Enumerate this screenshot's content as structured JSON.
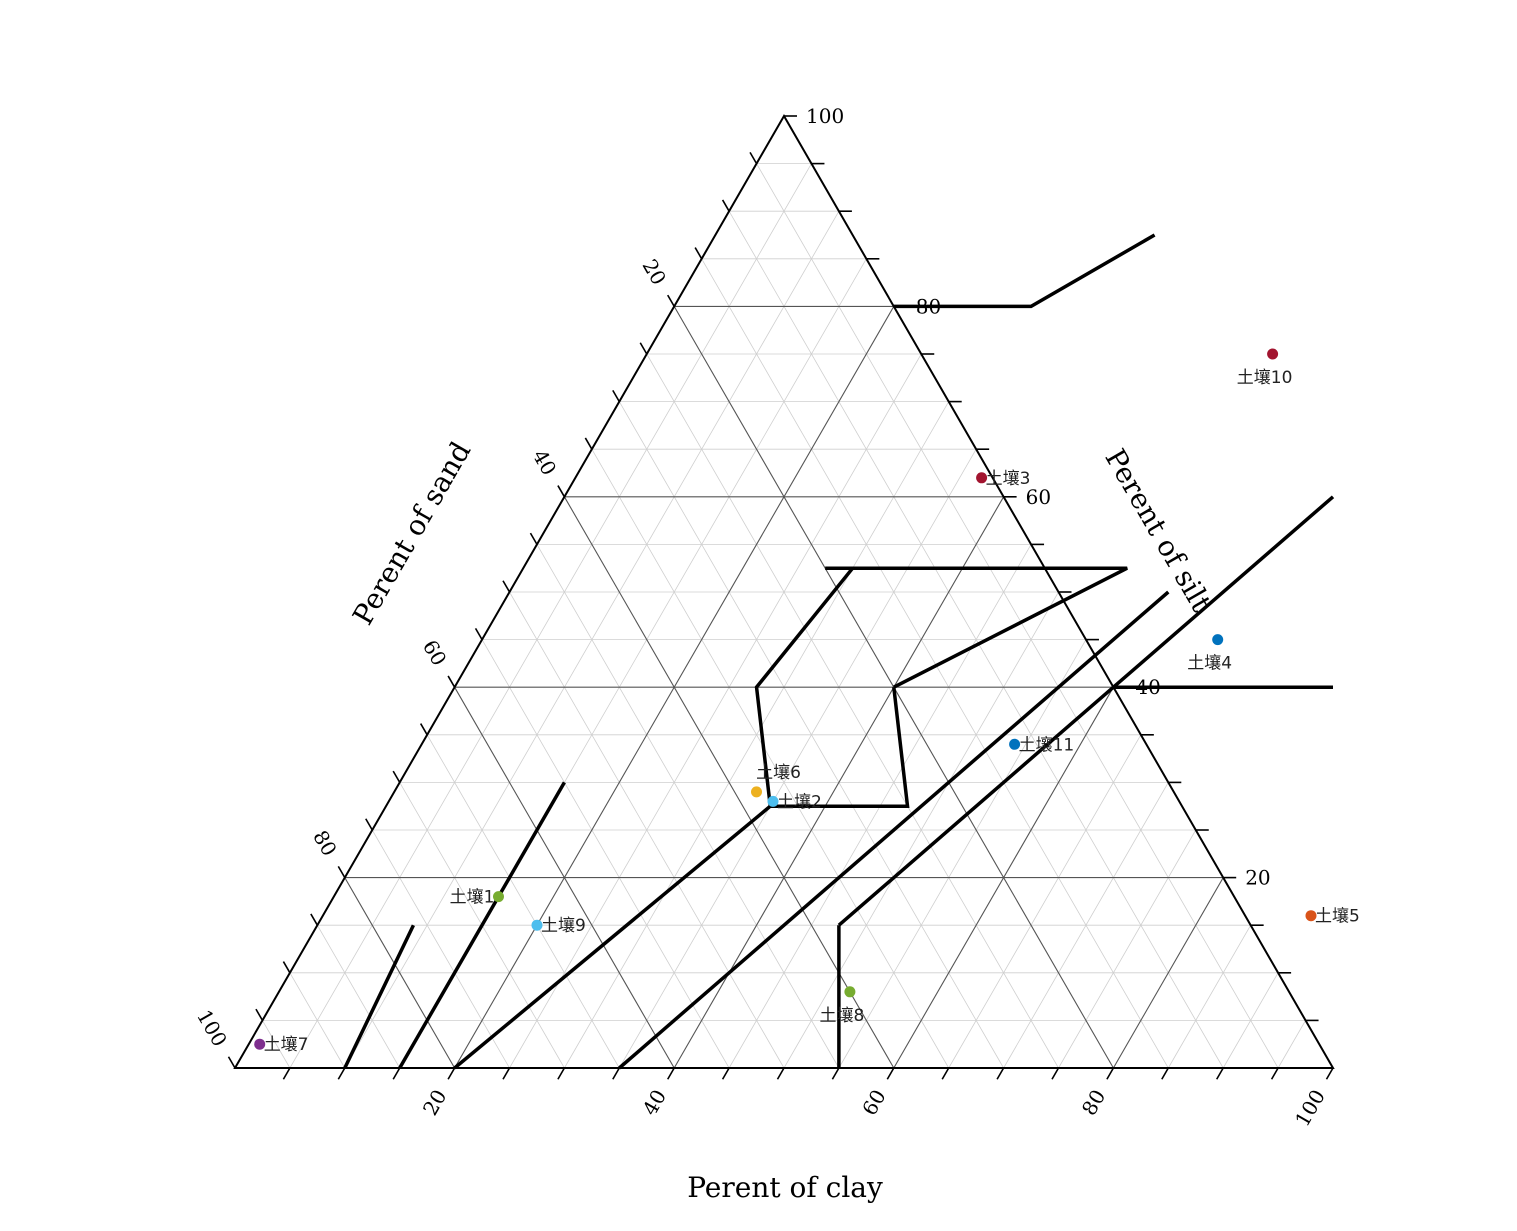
{
  "chart_data": {
    "type": "scatter",
    "subtype": "ternary",
    "axes": {
      "sand": {
        "title": "Perent of sand",
        "ticks": [
          "20",
          "40",
          "60",
          "80",
          "100"
        ]
      },
      "silt": {
        "title": "Perent of silt",
        "ticks": [
          "20",
          "40",
          "60",
          "80",
          "100"
        ]
      },
      "clay": {
        "title": "Perent of clay",
        "ticks": [
          "20",
          "40",
          "60",
          "80",
          "100"
        ]
      },
      "range": [
        0,
        100
      ],
      "major_step": 20,
      "minor_step": 5
    },
    "grid": true,
    "legend": "none",
    "points": [
      {
        "label": "土壤1",
        "clay": 15,
        "silt": 18,
        "color": "#77ac30",
        "label_side": "left"
      },
      {
        "label": "土壤2",
        "clay": 35,
        "silt": 28,
        "color": "#4dbeee",
        "label_side": "right"
      },
      {
        "label": "土壤3",
        "clay": 37,
        "silt": 62,
        "color": "#a2142f",
        "label_side": "right"
      },
      {
        "label": "土壤4",
        "clay": 67,
        "silt": 45,
        "color": "#0072bd",
        "label_side": "below"
      },
      {
        "label": "土壤5",
        "clay": 90,
        "silt": 16,
        "color": "#d95319",
        "label_side": "right"
      },
      {
        "label": "土壤6",
        "clay": 33,
        "silt": 29,
        "color": "#edb120",
        "label_side": "above"
      },
      {
        "label": "土壤7",
        "clay": 1,
        "silt": 2.5,
        "color": "#7e2f8e",
        "label_side": "right"
      },
      {
        "label": "土壤8",
        "clay": 52,
        "silt": 8,
        "color": "#77ac30",
        "label_side": "below"
      },
      {
        "label": "土壤9",
        "clay": 20,
        "silt": 15,
        "color": "#4dbeee",
        "label_side": "right"
      },
      {
        "label": "土壤10",
        "clay": 57,
        "silt": 75,
        "color": "#a2142f",
        "label_side": "below"
      },
      {
        "label": "土壤11",
        "clay": 54,
        "silt": 34,
        "color": "#0072bd",
        "label_side": "right"
      }
    ],
    "texture_boundaries": [
      [
        [
          10,
          0
        ],
        [
          8.75,
          15
        ]
      ],
      [
        [
          15,
          0
        ],
        [
          15,
          30
        ]
      ],
      [
        [
          20,
          0
        ],
        [
          35,
          27.5
        ]
      ],
      [
        [
          35,
          0
        ],
        [
          60,
          50
        ]
      ],
      [
        [
          55,
          0
        ],
        [
          47.5,
          15
        ]
      ],
      [
        [
          40,
          40
        ],
        [
          47.5,
          27.5
        ],
        [
          40,
          27.5
        ],
        [
          35,
          27.5
        ]
      ],
      [
        [
          40,
          40
        ],
        [
          55,
          52.5
        ],
        [
          40,
          52.5
        ],
        [
          27.5,
          52.5
        ]
      ],
      [
        [
          30,
          52.5
        ],
        [
          27.5,
          40
        ],
        [
          35,
          27.5
        ]
      ],
      [
        [
          47.5,
          15
        ],
        [
          60,
          40
        ],
        [
          70,
          60
        ]
      ],
      [
        [
          60,
          40
        ],
        [
          80,
          40
        ]
      ],
      [
        [
          20,
          80
        ],
        [
          32.5,
          80
        ],
        [
          40,
          87.5
        ]
      ]
    ]
  }
}
